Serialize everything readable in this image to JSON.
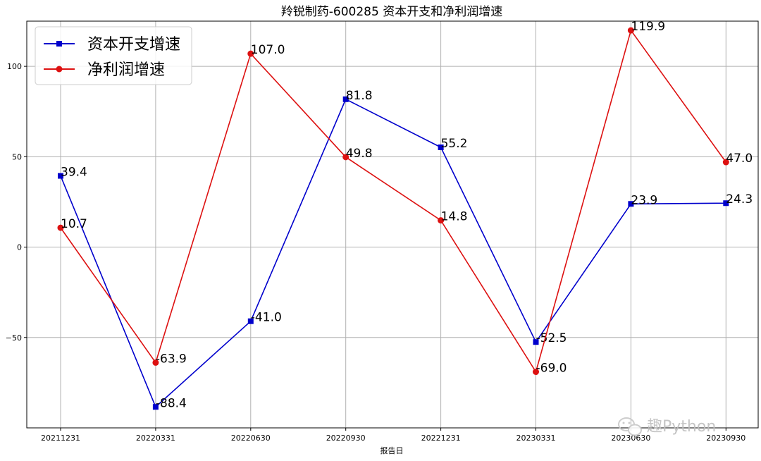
{
  "chart_data": {
    "type": "line",
    "title": "羚锐制药-600285 资本开支和净利润增速",
    "xlabel": "报告日",
    "ylabel": "",
    "categories": [
      "20211231",
      "20220331",
      "20220630",
      "20220930",
      "20221231",
      "20230331",
      "20230630",
      "20230930"
    ],
    "ylim": [
      -100,
      125
    ],
    "yticks": [
      -50,
      0,
      50,
      100
    ],
    "ytick_labels": [
      "−50",
      "0",
      "50",
      "100"
    ],
    "grid": true,
    "legend": "top-left",
    "series": [
      {
        "name": "资本开支增速",
        "color": "#0000cc",
        "marker": "square",
        "values": [
          39.4,
          -88.4,
          -41.0,
          81.8,
          55.2,
          -52.5,
          23.9,
          24.3
        ],
        "labels": [
          "39.4",
          "-88.4",
          "-41.0",
          "81.8",
          "55.2",
          "-52.5",
          "23.9",
          "24.3"
        ]
      },
      {
        "name": "净利润增速",
        "color": "#dd1111",
        "marker": "circle",
        "values": [
          10.7,
          -63.9,
          107.0,
          49.8,
          14.8,
          -69.0,
          119.9,
          47.0
        ],
        "labels": [
          "10.7",
          "-63.9",
          "107.0",
          "49.8",
          "14.8",
          "-69.0",
          "119.9",
          "47.0"
        ]
      }
    ]
  },
  "watermark": {
    "text": "趣Python",
    "icon": "wechat-icon"
  }
}
